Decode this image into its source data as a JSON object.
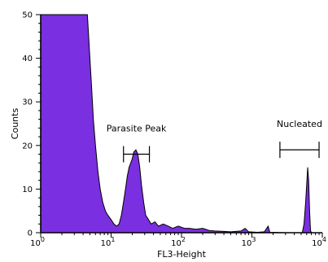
{
  "chart_data": {
    "type": "area",
    "xlabel": "FL3-Height",
    "ylabel": "Counts",
    "x_scale": "log",
    "xlim": [
      1,
      10000
    ],
    "ylim": [
      0,
      50
    ],
    "y_ticks": [
      0,
      10,
      20,
      30,
      40,
      50
    ],
    "x_ticks": [
      {
        "value": 1,
        "base": "10",
        "exp": "0"
      },
      {
        "value": 10,
        "base": "10",
        "exp": "1"
      },
      {
        "value": 100,
        "base": "10",
        "exp": "2"
      },
      {
        "value": 1000,
        "base": "10",
        "exp": "3"
      },
      {
        "value": 10000,
        "base": "10",
        "exp": "4"
      }
    ],
    "fill_color": "#7a2fe0",
    "edge_color": "#000000",
    "histogram": [
      [
        1.0,
        50
      ],
      [
        4.6,
        50
      ],
      [
        4.8,
        45
      ],
      [
        5.0,
        40
      ],
      [
        5.3,
        33
      ],
      [
        5.6,
        26
      ],
      [
        6.0,
        20
      ],
      [
        6.5,
        14
      ],
      [
        7.0,
        10
      ],
      [
        7.6,
        7
      ],
      [
        8.3,
        5
      ],
      [
        9.0,
        4
      ],
      [
        10.0,
        3
      ],
      [
        11.0,
        2
      ],
      [
        12.0,
        1.5
      ],
      [
        13.0,
        2
      ],
      [
        14.0,
        4
      ],
      [
        15.0,
        7
      ],
      [
        16.0,
        10
      ],
      [
        17.0,
        13
      ],
      [
        18.0,
        15
      ],
      [
        19.0,
        16
      ],
      [
        20.0,
        17
      ],
      [
        21.0,
        18.5
      ],
      [
        22.5,
        19
      ],
      [
        24.0,
        18
      ],
      [
        25.5,
        15
      ],
      [
        27.0,
        11
      ],
      [
        29.0,
        7
      ],
      [
        31.0,
        4
      ],
      [
        34.0,
        3
      ],
      [
        37.0,
        2
      ],
      [
        42.0,
        2.5
      ],
      [
        47.0,
        1.5
      ],
      [
        55.0,
        2
      ],
      [
        65.0,
        1.5
      ],
      [
        75.0,
        1
      ],
      [
        90.0,
        1.5
      ],
      [
        110.0,
        1
      ],
      [
        130.0,
        1
      ],
      [
        160.0,
        0.8
      ],
      [
        200.0,
        1
      ],
      [
        250.0,
        0.5
      ],
      [
        300.0,
        0.4
      ],
      [
        400.0,
        0.3
      ],
      [
        500.0,
        0.2
      ],
      [
        700.0,
        0.4
      ],
      [
        800.0,
        1
      ],
      [
        900.0,
        0.2
      ],
      [
        1200.0,
        0.1
      ],
      [
        1500.0,
        0.2
      ],
      [
        1700.0,
        1.5
      ],
      [
        1800.0,
        0.1
      ],
      [
        3000.0,
        0
      ],
      [
        5200.0,
        0
      ],
      [
        5500.0,
        2
      ],
      [
        5800.0,
        7
      ],
      [
        6000.0,
        11
      ],
      [
        6200.0,
        15
      ],
      [
        6400.0,
        12
      ],
      [
        6600.0,
        5
      ],
      [
        6800.0,
        0.5
      ],
      [
        7000.0,
        0
      ],
      [
        10000.0,
        0
      ]
    ],
    "gates": [
      {
        "label": "Parasite Peak",
        "x_start": 15,
        "x_end": 35,
        "y": 18
      },
      {
        "label": "Nucleated",
        "x_start": 2500,
        "x_end": 9000,
        "y": 19
      }
    ]
  }
}
